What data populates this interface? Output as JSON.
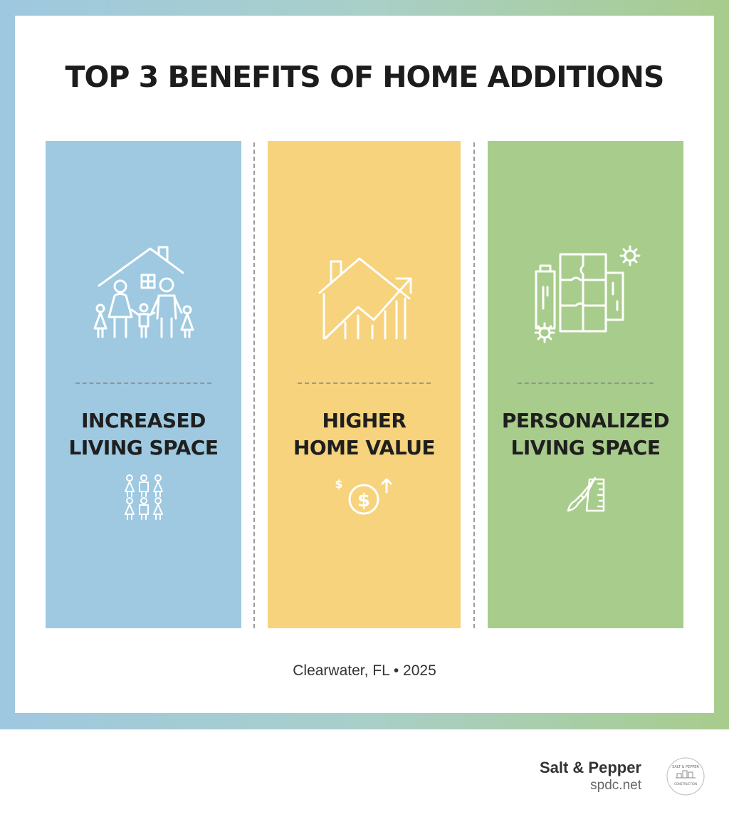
{
  "title": "TOP 3 BENEFITS OF HOME ADDITIONS",
  "columns": [
    {
      "line1": "INCREASED",
      "line2": "LIVING SPACE",
      "color": "#9ec9e1",
      "icon": "family-house-icon",
      "small_icon": "people-group-icon"
    },
    {
      "line1": "HIGHER",
      "line2": "HOME VALUE",
      "color": "#f6d37c",
      "icon": "house-growth-chart-icon",
      "small_icon": "dollar-up-icon"
    },
    {
      "line1": "PERSONALIZED",
      "line2": "LIVING SPACE",
      "color": "#a8cc8b",
      "icon": "puzzle-gears-icon",
      "small_icon": "brush-ruler-icon"
    }
  ],
  "footer_note": "Clearwater, FL • 2025",
  "brand": {
    "name": "Salt & Pepper",
    "url": "spdc.net",
    "logo_text": "SALT & PEPPER",
    "logo_sub": "CONSTRUCTION"
  }
}
